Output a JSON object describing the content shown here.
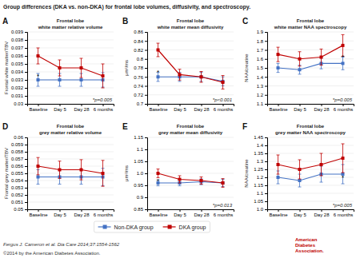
{
  "title": "Group differences (DKA vs. non-DKA) for frontal lobe volumes, diffusivity, and spectroscopy.",
  "legend": "bottom",
  "annotations": [
    {
      "text": "Fergus J. Cameron et al. Dia Care 2014;37:1554-1562"
    },
    {
      "text": "©2014 by the American Diabetes Association."
    },
    {
      "text": "American\nDiabetes\nAssociation.",
      "color": "#C00000"
    }
  ],
  "chart_data": [
    {
      "type": "line",
      "label": "A",
      "title": "Frontal lobe",
      "subtitle": "white matter relative volume",
      "ylabel": "Frontal white matter/TBV",
      "categories": [
        "Baseline",
        "Day 5",
        "Day 28",
        "6 months"
      ],
      "ylim": [
        0.03,
        0.039
      ],
      "yticks": [
        0.03,
        0.031,
        0.032,
        0.033,
        0.034,
        0.035,
        0.036,
        0.037,
        0.038,
        0.039
      ],
      "grid": true,
      "series": [
        {
          "name": "Non-DKA group",
          "color": "#4472C4",
          "marker": "square",
          "values": [
            0.033,
            0.033,
            0.033,
            0.033
          ],
          "errors": [
            0.0008,
            0.0008,
            0.0008,
            0.0009
          ]
        },
        {
          "name": "DKA group",
          "color": "#C00000",
          "marker": "square",
          "values": [
            0.036,
            0.0345,
            0.0345,
            0.0335
          ],
          "errors": [
            0.001,
            0.001,
            0.0012,
            0.0015
          ]
        }
      ],
      "annotations": [
        {
          "text": "*p=0.005"
        },
        {
          "text": "*",
          "x": "Baseline",
          "y": 0.0335
        }
      ]
    },
    {
      "type": "line",
      "label": "B",
      "title": "Frontal lobe",
      "subtitle": "white matter mean diffusivity",
      "ylabel": "μm²/ms",
      "categories": [
        "Baseline",
        "Day 5",
        "Day 28",
        "6 months"
      ],
      "ylim": [
        0.7,
        0.86
      ],
      "yticks": [
        0.7,
        0.72,
        0.74,
        0.76,
        0.78,
        0.8,
        0.82,
        0.84,
        0.86
      ],
      "grid": true,
      "series": [
        {
          "name": "Non-DKA group",
          "color": "#4472C4",
          "marker": "square",
          "values": [
            0.76,
            0.76,
            0.76,
            0.75
          ],
          "errors": [
            0.01,
            0.01,
            0.01,
            0.01
          ]
        },
        {
          "name": "DKA group",
          "color": "#C00000",
          "marker": "square",
          "values": [
            0.82,
            0.765,
            0.76,
            0.748
          ],
          "errors": [
            0.015,
            0.012,
            0.012,
            0.015
          ]
        }
      ],
      "annotations": [
        {
          "text": "*p<0.001"
        },
        {
          "text": "*",
          "x": "Baseline",
          "y": 0.77
        }
      ]
    },
    {
      "type": "line",
      "label": "C",
      "title": "Frontal lobe",
      "subtitle": "white matter NAA spectroscopy",
      "ylabel": "NAA/creatine",
      "categories": [
        "Baseline",
        "Day 5",
        "Day 28",
        "6 months"
      ],
      "ylim": [
        1.1,
        1.9
      ],
      "yticks": [
        1.1,
        1.2,
        1.3,
        1.4,
        1.5,
        1.6,
        1.7,
        1.8,
        1.9
      ],
      "grid": true,
      "series": [
        {
          "name": "Non-DKA group",
          "color": "#4472C4",
          "marker": "square",
          "values": [
            1.5,
            1.48,
            1.55,
            1.55
          ],
          "errors": [
            0.05,
            0.05,
            0.06,
            0.07
          ]
        },
        {
          "name": "DKA group",
          "color": "#C00000",
          "marker": "square",
          "values": [
            1.65,
            1.6,
            1.62,
            1.75
          ],
          "errors": [
            0.08,
            0.08,
            0.09,
            0.12
          ]
        }
      ],
      "annotations": [
        {
          "text": "*p=0.005"
        },
        {
          "text": "*",
          "x": "6 months",
          "y": 1.62
        }
      ]
    },
    {
      "type": "line",
      "label": "D",
      "title": "Frontal lobe",
      "subtitle": "grey matter relative volume",
      "ylabel": "Frontal grey matter/TBV",
      "categories": [
        "Baseline",
        "Day 5",
        "Day 28",
        "6 months"
      ],
      "ylim": [
        0.05,
        0.06
      ],
      "yticks": [
        0.05,
        0.051,
        0.052,
        0.053,
        0.054,
        0.055,
        0.056,
        0.057,
        0.058,
        0.059,
        0.06
      ],
      "grid": true,
      "series": [
        {
          "name": "Non-DKA group",
          "color": "#4472C4",
          "marker": "square",
          "values": [
            0.0545,
            0.0545,
            0.0545,
            0.0545
          ],
          "errors": [
            0.001,
            0.001,
            0.001,
            0.0012
          ]
        },
        {
          "name": "DKA group",
          "color": "#C00000",
          "marker": "square",
          "values": [
            0.056,
            0.0555,
            0.0555,
            0.055
          ],
          "errors": [
            0.0012,
            0.0012,
            0.0014,
            0.0018
          ]
        }
      ]
    },
    {
      "type": "line",
      "label": "E",
      "title": "Frontal lobe",
      "subtitle": "grey matter mean diffusivity",
      "ylabel": "μm²/ms",
      "categories": [
        "Baseline",
        "Day 5",
        "Day 28",
        "6 months"
      ],
      "ylim": [
        0.85,
        1.15
      ],
      "yticks": [
        0.85,
        0.9,
        0.95,
        {
          "value": 1.0,
          "label": "1.0"
        },
        1.05,
        1.1,
        1.15
      ],
      "grid": true,
      "series": [
        {
          "name": "Non-DKA group",
          "color": "#4472C4",
          "marker": "square",
          "values": [
            0.96,
            0.96,
            0.965,
            0.96
          ],
          "errors": [
            0.012,
            0.012,
            0.012,
            0.015
          ]
        },
        {
          "name": "DKA group",
          "color": "#C00000",
          "marker": "square",
          "values": [
            1.0,
            0.975,
            0.97,
            0.96
          ],
          "errors": [
            0.018,
            0.015,
            0.015,
            0.018
          ]
        }
      ],
      "annotations": [
        {
          "text": "*p=0.013"
        },
        {
          "text": "*",
          "x": "Baseline",
          "y": 0.97
        }
      ]
    },
    {
      "type": "line",
      "label": "F",
      "title": "Frontal lobe",
      "subtitle": "grey matter NAA spectroscopy",
      "ylabel": "NAA/creatine",
      "categories": [
        "Baseline",
        "Day 5",
        "Day 28",
        "6 months"
      ],
      "ylim": [
        1.0,
        1.45
      ],
      "yticks": [
        {
          "value": 1.0,
          "label": "1.0"
        },
        1.05,
        1.1,
        1.15,
        1.2,
        1.25,
        1.3,
        1.35,
        1.4,
        1.45
      ],
      "grid": true,
      "series": [
        {
          "name": "Non-DKA group",
          "color": "#4472C4",
          "marker": "square",
          "values": [
            1.2,
            1.18,
            1.22,
            1.22
          ],
          "errors": [
            0.04,
            0.04,
            0.05,
            0.06
          ]
        },
        {
          "name": "DKA group",
          "color": "#C00000",
          "marker": "square",
          "values": [
            1.28,
            1.25,
            1.28,
            1.32
          ],
          "errors": [
            0.06,
            0.06,
            0.07,
            0.09
          ]
        }
      ],
      "annotations": [
        {
          "text": "*p=0.005"
        },
        {
          "text": "*",
          "x": "6 months",
          "y": 1.2
        }
      ]
    }
  ]
}
